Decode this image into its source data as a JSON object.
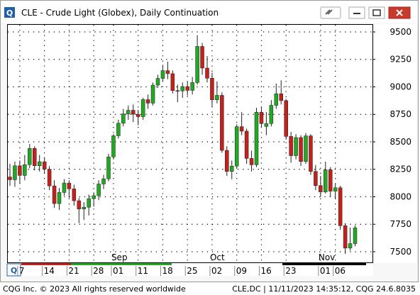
{
  "window_title": "CLE - Crude Light (Globex), Daily Continuation",
  "chart_data": {
    "type": "candlestick",
    "categories": [
      null,
      null,
      "7",
      null,
      null,
      null,
      null,
      "14",
      null,
      null,
      null,
      null,
      "21",
      null,
      null,
      null,
      null,
      "28",
      null,
      null,
      null,
      "01",
      null,
      null,
      null,
      null,
      "11",
      null,
      null,
      null,
      null,
      "18",
      null,
      null,
      null,
      null,
      "25",
      null,
      null,
      null,
      null,
      "02",
      null,
      null,
      null,
      null,
      "09",
      null,
      null,
      null,
      null,
      "16",
      null,
      null,
      null,
      null,
      "23",
      null,
      null,
      null,
      null,
      null,
      null,
      "01",
      null,
      null,
      "06",
      null,
      null,
      null,
      null
    ],
    "month_labels": [
      null,
      null,
      null,
      null,
      null,
      null,
      null,
      null,
      null,
      null,
      null,
      null,
      null,
      null,
      null,
      null,
      null,
      null,
      null,
      null,
      null,
      "Sep",
      null,
      null,
      null,
      null,
      null,
      null,
      null,
      null,
      null,
      null,
      null,
      null,
      null,
      null,
      null,
      null,
      null,
      null,
      null,
      "Oct",
      null,
      null,
      null,
      null,
      null,
      null,
      null,
      null,
      null,
      null,
      null,
      null,
      null,
      null,
      null,
      null,
      null,
      null,
      null,
      null,
      null,
      "Nov",
      null,
      null,
      null,
      null,
      null,
      null,
      null
    ],
    "open": [
      8180,
      8155,
      8282,
      8194,
      8292,
      8440,
      8282,
      8319,
      8251,
      8099,
      7938,
      8039,
      8125,
      8072,
      7964,
      7889,
      7905,
      7983,
      8010,
      8116,
      8163,
      8363,
      8555,
      8669,
      8754,
      8787,
      8751,
      8729,
      8884,
      8852,
      9016,
      9077,
      9148,
      9120,
      8966,
      8963,
      9003,
      8968,
      9039,
      9368,
      9171,
      9079,
      8882,
      8923,
      8422,
      8231,
      8279,
      8638,
      8597,
      8349,
      8291,
      8769,
      8640,
      8666,
      8832,
      8937,
      8875,
      8549,
      8374,
      8539,
      8321,
      8554,
      8231,
      8102,
      8044,
      8246,
      8051,
      8082,
      7737,
      7533,
      7574
    ],
    "high": [
      8300,
      8320,
      8330,
      8380,
      8480,
      8460,
      8380,
      8360,
      8280,
      8150,
      8080,
      8160,
      8150,
      8110,
      7990,
      7950,
      8020,
      8040,
      8150,
      8200,
      8390,
      8570,
      8700,
      8800,
      8830,
      8840,
      8790,
      8900,
      8930,
      9040,
      9110,
      9200,
      9230,
      9150,
      9020,
      9040,
      9050,
      9090,
      9470,
      9400,
      9280,
      9130,
      9050,
      8950,
      8460,
      8330,
      8660,
      8770,
      8620,
      8420,
      8810,
      8820,
      8770,
      8880,
      9030,
      9060,
      8890,
      8590,
      8570,
      8560,
      8580,
      8570,
      8290,
      8190,
      8320,
      8270,
      8120,
      8100,
      7760,
      7720,
      7740
    ],
    "low": [
      8100,
      8090,
      8120,
      8150,
      8260,
      8240,
      8230,
      8210,
      8060,
      7900,
      7880,
      8010,
      7990,
      7920,
      7760,
      7790,
      7830,
      7910,
      7970,
      8070,
      8140,
      8340,
      8530,
      8640,
      8700,
      8680,
      8650,
      8700,
      8800,
      8830,
      8990,
      9050,
      9070,
      8940,
      8860,
      8900,
      8920,
      8930,
      9020,
      9110,
      9040,
      8820,
      8850,
      8400,
      8190,
      8160,
      8260,
      8560,
      8300,
      8230,
      8270,
      8630,
      8560,
      8640,
      8800,
      8840,
      8520,
      8310,
      8340,
      8280,
      8300,
      8200,
      8060,
      8000,
      8030,
      8000,
      7980,
      7700,
      7480,
      7510,
      7550
    ],
    "close": [
      8155,
      8282,
      8194,
      8292,
      8440,
      8282,
      8319,
      8251,
      8099,
      7938,
      8039,
      8125,
      8072,
      7964,
      7889,
      7905,
      7983,
      8010,
      8116,
      8163,
      8363,
      8555,
      8669,
      8754,
      8787,
      8751,
      8729,
      8884,
      8852,
      9016,
      9077,
      9148,
      9120,
      8966,
      8963,
      9003,
      8968,
      9039,
      9368,
      9171,
      9079,
      8882,
      8923,
      8422,
      8231,
      8279,
      8638,
      8597,
      8349,
      8291,
      8769,
      8666,
      8666,
      8832,
      8937,
      8875,
      8549,
      8374,
      8539,
      8321,
      8554,
      8231,
      8102,
      8044,
      8246,
      8051,
      8082,
      7737,
      7533,
      7574,
      7717
    ],
    "up_color": "#22a822",
    "down_color": "#c4201c",
    "ylim": [
      7403,
      9571
    ],
    "yticks": [
      7500,
      7750,
      8000,
      8250,
      8500,
      8750,
      9000,
      9250,
      9500
    ],
    "grid": true
  },
  "footer_left": "CQG Inc. © 2023 All rights reserved worldwide",
  "footer_right": "CLE,DC | 11/11/2023 14:35:12, CQG 24.6.8035"
}
